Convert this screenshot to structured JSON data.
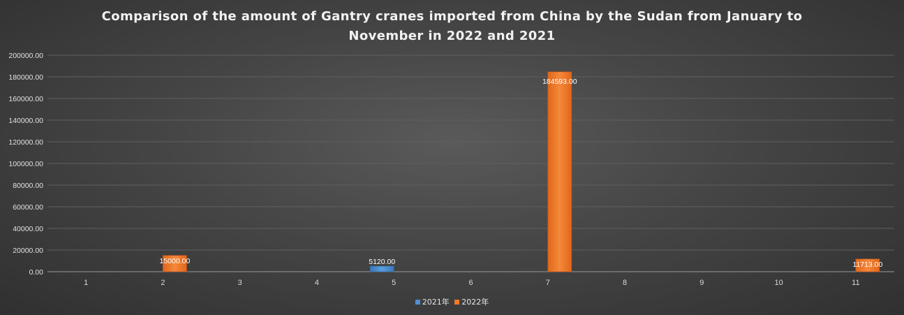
{
  "chart_data": {
    "type": "bar",
    "title_lines": [
      "Comparison of the amount of Gantry cranes imported from China by the Sudan from January to",
      "November in 2022 and 2021"
    ],
    "categories": [
      "1",
      "2",
      "3",
      "4",
      "5",
      "6",
      "7",
      "8",
      "9",
      "10",
      "11"
    ],
    "series": [
      {
        "name": "2021年",
        "color": "#4f8fd0",
        "values": [
          0,
          0,
          0,
          0,
          5120,
          0,
          0,
          0,
          0,
          0,
          0
        ],
        "labels": [
          null,
          null,
          null,
          null,
          "5120.00",
          null,
          null,
          null,
          null,
          null,
          null
        ]
      },
      {
        "name": "2022年",
        "color": "#f07a26",
        "values": [
          0,
          15000,
          0,
          0,
          0,
          0,
          184593,
          0,
          0,
          0,
          11713
        ],
        "labels": [
          null,
          "15000.00",
          null,
          null,
          null,
          null,
          "184593.00",
          null,
          null,
          null,
          "11713.00"
        ]
      }
    ],
    "ylim": [
      0,
      200000
    ],
    "y_ticks": [
      "0.00",
      "20000.00",
      "40000.00",
      "60000.00",
      "80000.00",
      "100000.00",
      "120000.00",
      "140000.00",
      "160000.00",
      "180000.00",
      "200000.00"
    ],
    "grid": true,
    "legend_position": "bottom"
  }
}
